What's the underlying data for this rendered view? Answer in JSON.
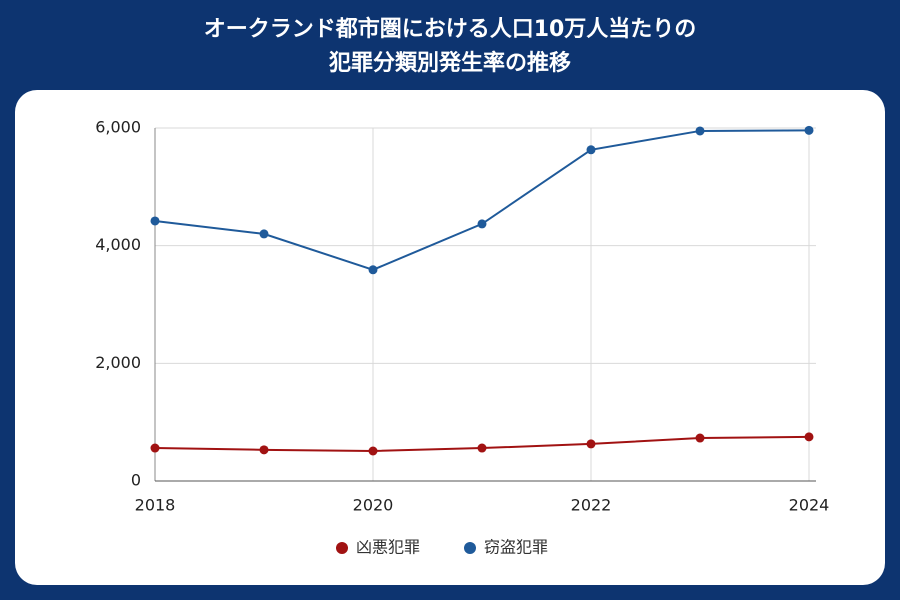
{
  "chart_data": {
    "type": "line",
    "title": [
      "オークランド都市圏における人口10万人当たりの",
      "犯罪分類別発生率の推移"
    ],
    "x": [
      2018,
      2019,
      2020,
      2021,
      2022,
      2023,
      2024
    ],
    "series": [
      {
        "name": "凶悪犯罪",
        "color": "#a11212",
        "values": [
          560,
          530,
          510,
          560,
          630,
          730,
          750
        ]
      },
      {
        "name": "窃盗犯罪",
        "color": "#1f5a9a",
        "values": [
          4420,
          4200,
          3590,
          4370,
          5630,
          5950,
          5960
        ]
      }
    ],
    "xlim": [
      2018,
      2024
    ],
    "xticks": [
      2018,
      2020,
      2022,
      2024
    ],
    "ylim": [
      0,
      6000
    ],
    "yticks": [
      0,
      {
        "value": 2000,
        "label": "2,000"
      },
      {
        "value": 4000,
        "label": "4,000"
      },
      {
        "value": 6000,
        "label": "6,000"
      }
    ],
    "grid": true,
    "legend": "bottom"
  }
}
